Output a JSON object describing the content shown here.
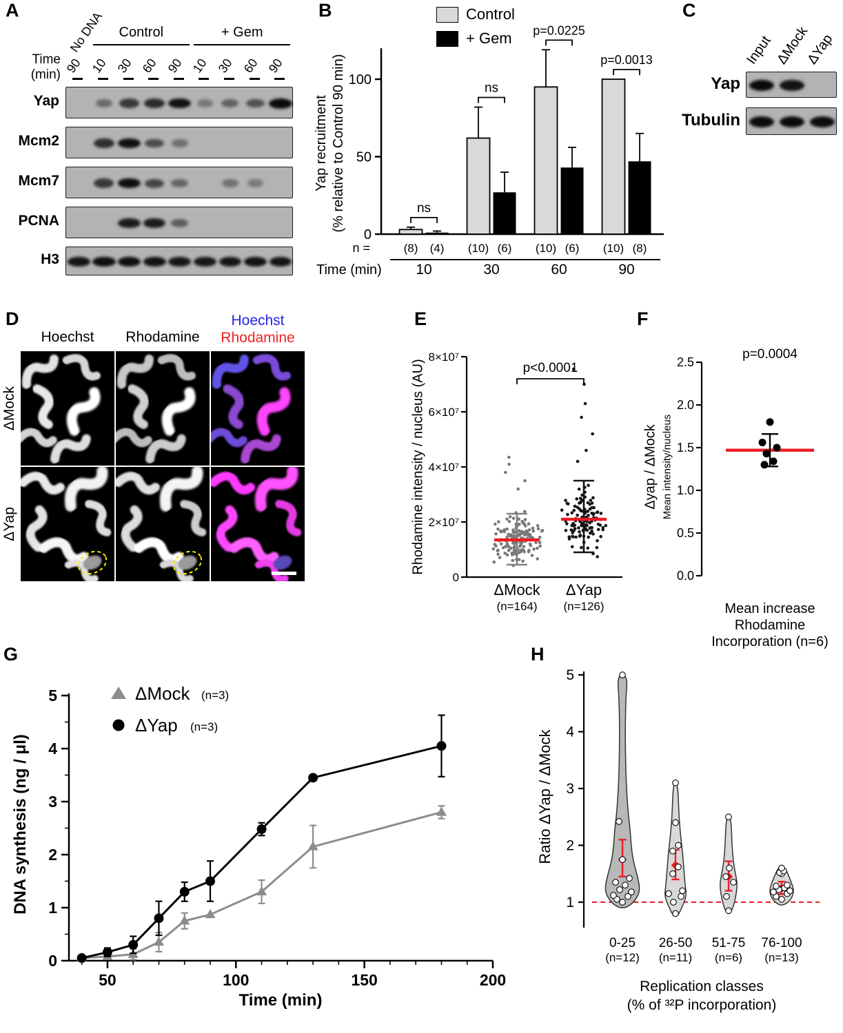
{
  "panel_labels": {
    "a": "A",
    "b": "B",
    "c": "C",
    "d": "D",
    "e": "E",
    "f": "F",
    "g": "G",
    "h": "H"
  },
  "colors": {
    "control_fill": "#d9d9d9",
    "gem_fill": "#000000",
    "red": "#ed1c24",
    "hoechst_blue": "#2222ee",
    "rhodamine_red": "#ee2222",
    "mock_gray": "#8c8c8c",
    "blot_bg": "#b3b3b3"
  },
  "panel_a": {
    "time_axis_label_1": "Time",
    "time_axis_label_2": "(min)",
    "no_dna": "No DNA",
    "group_labels": [
      "Control",
      "+ Gem"
    ],
    "lane_times": [
      "90",
      "10",
      "30",
      "60",
      "90",
      "10",
      "30",
      "60",
      "90"
    ],
    "antibodies": [
      "Yap",
      "Mcm2",
      "Mcm7",
      "PCNA",
      "H3"
    ],
    "bands": {
      "Yap": [
        0,
        0.18,
        0.6,
        0.72,
        0.92,
        0.06,
        0.25,
        0.4,
        1.0
      ],
      "Mcm2": [
        0,
        0.7,
        0.95,
        0.45,
        0.15,
        0,
        0,
        0,
        0
      ],
      "Mcm7": [
        0,
        0.6,
        0.95,
        0.5,
        0.22,
        0,
        0.12,
        0.05,
        0
      ],
      "PCNA": [
        0,
        0,
        0.85,
        0.85,
        0.3,
        0,
        0,
        0,
        0
      ],
      "H3": [
        0.92,
        0.95,
        0.95,
        0.92,
        0.9,
        0.88,
        0.9,
        0.92,
        0.9
      ]
    }
  },
  "panel_c": {
    "lanes": [
      "Input",
      "ΔMock",
      "ΔYap"
    ],
    "rows": [
      {
        "name": "Yap",
        "bands": [
          1,
          0.92,
          0
        ]
      },
      {
        "name": "Tubulin",
        "bands": [
          1,
          1,
          0.98
        ]
      }
    ]
  },
  "panel_d": {
    "col_headers": [
      "Hoechst",
      "Rhodamine"
    ],
    "merge_header": [
      "Hoechst",
      "Rhodamine"
    ],
    "row_labels": [
      "ΔMock",
      "ΔYap"
    ]
  },
  "chart_data": [
    {
      "panel": "B",
      "type": "bar",
      "legend": [
        "Control",
        "+ Gem"
      ],
      "ylabel_line1": "Yap recruitment",
      "ylabel_line2": "(% relative to Control 90 min)",
      "yticks": [
        0,
        50,
        100
      ],
      "ylim": [
        0,
        120
      ],
      "xlabel": "Time (min)",
      "n_prefix": "n =",
      "categories": [
        "10",
        "30",
        "60",
        "90"
      ],
      "series": [
        {
          "name": "Control",
          "values": [
            3,
            62,
            95,
            100
          ],
          "errors": [
            1.5,
            20,
            24,
            0
          ],
          "n": [
            "(8)",
            "(10)",
            "(10)",
            "(10)"
          ],
          "fill": "#d9d9d9"
        },
        {
          "name": "+ Gem",
          "values": [
            1,
            27,
            43,
            47
          ],
          "errors": [
            1,
            13,
            13,
            18
          ],
          "n": [
            "(4)",
            "(6)",
            "(6)",
            "(8)"
          ],
          "fill": "#000000"
        }
      ],
      "sig_labels": [
        "ns",
        "ns",
        "p=0.0225",
        "p=0.0013"
      ]
    },
    {
      "panel": "E",
      "type": "scatter",
      "ylabel": "Rhodamine intensity / nucleus (AU)",
      "ytick_labels": [
        "0",
        "2×10⁷",
        "4×10⁷",
        "6×10⁷",
        "8×10⁷"
      ],
      "ytick_values": [
        0,
        20000000,
        40000000,
        60000000,
        80000000
      ],
      "ymax": 80000000,
      "p_label": "p<0.0001",
      "median_color": "#ed1c24",
      "groups": [
        {
          "name": "ΔMock",
          "n_label": "(n=164)",
          "n": 164,
          "median": 13500000,
          "whisker_low": 4500000,
          "whisker_high": 23000000,
          "min": 1500000,
          "max": 44000000,
          "point_color": "#787878",
          "whisker_color": "#808080"
        },
        {
          "name": "ΔYap",
          "n_label": "(n=126)",
          "n": 126,
          "median": 21000000,
          "whisker_low": 9000000,
          "whisker_high": 35000000,
          "min": 4000000,
          "max": 76000000,
          "point_color": "#141414",
          "whisker_color": "#141414"
        }
      ]
    },
    {
      "panel": "F",
      "type": "scatter",
      "p_label": "p=0.0004",
      "ylabel_main": "Δyap / ΔMock",
      "ylabel_sub": "Mean intensity/nucleus",
      "ytick_labels": [
        "0.0",
        "0.5",
        "1.0",
        "1.5",
        "2.0",
        "2.5"
      ],
      "points": [
        1.8,
        1.56,
        1.5,
        1.43,
        1.34,
        1.3
      ],
      "mean": 1.47,
      "err_low": 1.28,
      "err_high": 1.66,
      "xlabel_lines": [
        "Mean increase",
        "Rhodamine",
        "Incorporation (n=6)"
      ]
    },
    {
      "panel": "G",
      "type": "line",
      "ylabel": "DNA synthesis (ng / μl)",
      "xlabel": "Time (min)",
      "xticks": [
        50,
        100,
        150,
        200
      ],
      "yticks": [
        0,
        1,
        2,
        3,
        4,
        5
      ],
      "xlim": [
        35,
        200
      ],
      "ylim": [
        0,
        5
      ],
      "x": [
        40,
        50,
        60,
        70,
        80,
        90,
        110,
        130,
        180
      ],
      "series": [
        {
          "name": "ΔMock",
          "n_label": "(n=3)",
          "marker": "triangle",
          "color": "#8c8c8c",
          "y": [
            0.05,
            0.08,
            0.12,
            0.35,
            0.75,
            0.87,
            1.3,
            2.15,
            2.8
          ],
          "err": [
            0.03,
            0.05,
            0.1,
            0.18,
            0.15,
            0.04,
            0.22,
            0.4,
            0.12
          ]
        },
        {
          "name": "ΔYap",
          "n_label": "(n=3)",
          "marker": "circle",
          "color": "#000000",
          "y": [
            0.05,
            0.16,
            0.3,
            0.8,
            1.3,
            1.5,
            2.48,
            3.45,
            4.05
          ],
          "err": [
            0.03,
            0.08,
            0.16,
            0.32,
            0.18,
            0.38,
            0.12,
            0.04,
            0.58
          ]
        }
      ]
    },
    {
      "panel": "H",
      "type": "violin",
      "ylabel": "Ratio ΔYap / ΔMock",
      "yticks": [
        1,
        2,
        3,
        4,
        5
      ],
      "baseline": 1,
      "baseline_color": "#ed1c24",
      "xlabel_line1": "Replication classes",
      "xlabel_line2": "(% of ³²P incorporation)",
      "violins": [
        {
          "category": "0-25",
          "n_label": "(n=12)",
          "mean": 1.75,
          "err_low": 1.45,
          "err_high": 2.1,
          "fill": "#b8b8b8",
          "points": [
            1.0,
            1.05,
            1.1,
            1.12,
            1.18,
            1.22,
            1.3,
            1.35,
            1.42,
            1.75,
            2.42,
            5.0
          ],
          "shape": [
            [
              0.9,
              5
            ],
            [
              1.0,
              17
            ],
            [
              1.2,
              26
            ],
            [
              1.45,
              22
            ],
            [
              1.8,
              14
            ],
            [
              2.3,
              11
            ],
            [
              2.6,
              8
            ],
            [
              3.2,
              5
            ],
            [
              4.0,
              4
            ],
            [
              4.6,
              5
            ],
            [
              4.9,
              7
            ],
            [
              5.0,
              3
            ]
          ]
        },
        {
          "category": "26-50",
          "n_label": "(n=11)",
          "mean": 1.65,
          "err_low": 1.4,
          "err_high": 1.92,
          "fill": "#d8d8d8",
          "points": [
            0.8,
            1.0,
            1.1,
            1.15,
            1.2,
            1.5,
            1.62,
            1.9,
            2.0,
            2.4,
            3.1
          ],
          "shape": [
            [
              0.75,
              3
            ],
            [
              0.9,
              9
            ],
            [
              1.1,
              16
            ],
            [
              1.3,
              14
            ],
            [
              1.6,
              12
            ],
            [
              1.9,
              10
            ],
            [
              2.1,
              8
            ],
            [
              2.5,
              5
            ],
            [
              2.9,
              4
            ],
            [
              3.1,
              2
            ]
          ]
        },
        {
          "category": "51-75",
          "n_label": "(n=6)",
          "mean": 1.45,
          "err_low": 1.2,
          "err_high": 1.72,
          "fill": "#d8d8d8",
          "points": [
            0.85,
            1.1,
            1.35,
            1.45,
            1.6,
            2.5
          ],
          "shape": [
            [
              0.8,
              3
            ],
            [
              1.0,
              9
            ],
            [
              1.3,
              13
            ],
            [
              1.5,
              10
            ],
            [
              1.7,
              7
            ],
            [
              2.0,
              5
            ],
            [
              2.35,
              4
            ],
            [
              2.5,
              2
            ]
          ]
        },
        {
          "category": "76-100",
          "n_label": "(n=13)",
          "mean": 1.25,
          "err_low": 1.14,
          "err_high": 1.36,
          "fill": "#d8d8d8",
          "points": [
            1.05,
            1.1,
            1.15,
            1.18,
            1.2,
            1.22,
            1.25,
            1.28,
            1.3,
            1.5,
            1.52,
            1.55,
            1.6
          ],
          "shape": [
            [
              0.95,
              4
            ],
            [
              1.05,
              14
            ],
            [
              1.2,
              18
            ],
            [
              1.35,
              14
            ],
            [
              1.5,
              9
            ],
            [
              1.62,
              4
            ]
          ]
        }
      ]
    }
  ]
}
